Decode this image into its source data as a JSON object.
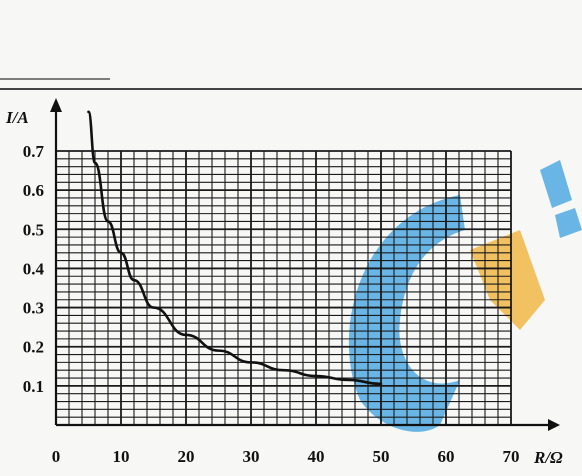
{
  "chart_data": {
    "type": "line",
    "xlabel": "R/Ω",
    "ylabel": "I/A",
    "xlim": [
      0,
      70
    ],
    "ylim": [
      0,
      0.7
    ],
    "x_ticks": [
      {
        "value": 0,
        "label": "0"
      },
      {
        "value": 10,
        "label": "10"
      },
      {
        "value": 20,
        "label": "20"
      },
      {
        "value": 30,
        "label": "30"
      },
      {
        "value": 40,
        "label": "40"
      },
      {
        "value": 50,
        "label": "50"
      },
      {
        "value": 60,
        "label": "60"
      },
      {
        "value": 70,
        "label": "70"
      }
    ],
    "y_ticks": [
      {
        "value": 0.1,
        "label": "0.1"
      },
      {
        "value": 0.2,
        "label": "0.2"
      },
      {
        "value": 0.3,
        "label": "0.3"
      },
      {
        "value": 0.4,
        "label": "0.4"
      },
      {
        "value": 0.5,
        "label": "0.5"
      },
      {
        "value": 0.6,
        "label": "0.6"
      },
      {
        "value": 0.7,
        "label": "0.7"
      }
    ],
    "grid": true,
    "grid_x_minor_step": 2,
    "grid_y_minor_step": 0.02,
    "series": [
      {
        "x": [
          5,
          6,
          8,
          10,
          12,
          15,
          20,
          25,
          30,
          35,
          40,
          45,
          50
        ],
        "y": [
          0.8,
          0.67,
          0.52,
          0.44,
          0.37,
          0.3,
          0.23,
          0.19,
          0.16,
          0.14,
          0.125,
          0.115,
          0.105
        ]
      }
    ],
    "colors": {
      "line": "#111111",
      "grid": "#1a1a1a",
      "watermark_blue": "#3aa0e0",
      "watermark_orange": "#f0b030"
    }
  }
}
